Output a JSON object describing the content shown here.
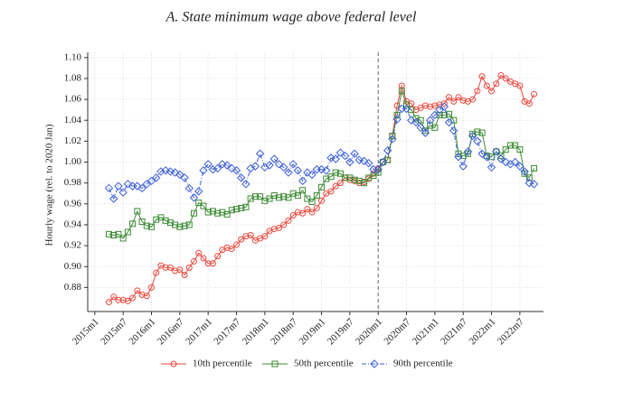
{
  "chart_data": {
    "type": "line",
    "title": "A. State minimum wage above federal level",
    "ylabel": "Hourly wage (rel. to 2020 Jan)",
    "x": [
      3,
      4,
      5,
      6,
      7,
      8,
      9,
      10,
      11,
      12,
      13,
      14,
      15,
      16,
      17,
      18,
      19,
      20,
      21,
      22,
      23,
      24,
      25,
      26,
      27,
      28,
      29,
      30,
      31,
      32,
      33,
      34,
      35,
      36,
      37,
      38,
      39,
      40,
      41,
      42,
      43,
      44,
      45,
      46,
      47,
      48,
      49,
      50,
      51,
      52,
      53,
      54,
      55,
      56,
      57,
      58,
      59,
      60,
      61,
      62,
      63,
      64,
      65,
      66,
      67,
      68,
      69,
      70,
      71,
      72,
      73,
      74,
      75,
      76,
      77,
      78,
      79,
      80,
      81,
      82,
      83,
      84,
      85,
      86,
      87,
      88,
      89,
      90,
      91,
      92,
      93
    ],
    "xlim": [
      -1.5,
      95
    ],
    "xticks": [
      {
        "value": 0,
        "label": "2015m1"
      },
      {
        "value": 6,
        "label": "2015m7"
      },
      {
        "value": 12,
        "label": "2016m1"
      },
      {
        "value": 18,
        "label": "2016m7"
      },
      {
        "value": 24,
        "label": "2017m1"
      },
      {
        "value": 30,
        "label": "2017m7"
      },
      {
        "value": 36,
        "label": "2018m1"
      },
      {
        "value": 42,
        "label": "2018m7"
      },
      {
        "value": 48,
        "label": "2019m1"
      },
      {
        "value": 54,
        "label": "2019m7"
      },
      {
        "value": 60,
        "label": "2020m1"
      },
      {
        "value": 66,
        "label": "2020m7"
      },
      {
        "value": 72,
        "label": "2021m1"
      },
      {
        "value": 78,
        "label": "2021m7"
      },
      {
        "value": 84,
        "label": "2022m1"
      },
      {
        "value": 90,
        "label": "2022m7"
      }
    ],
    "ylim": [
      0.857,
      1.105
    ],
    "yticks": [
      0.88,
      {
        "value": 0.9,
        "label": "0.90"
      },
      0.92,
      0.94,
      0.96,
      0.98,
      {
        "value": 1.0,
        "label": "1.00"
      },
      1.02,
      1.04,
      1.06,
      1.08,
      {
        "value": 1.1,
        "label": "1.10"
      }
    ],
    "grid": true,
    "vline": 60,
    "legend": "bottom",
    "series": [
      {
        "name": "10th percentile",
        "color": "#e8473d",
        "marker": "circle",
        "dash": "solid",
        "values": [
          0.866,
          0.871,
          0.868,
          0.868,
          0.867,
          0.87,
          0.877,
          0.873,
          0.872,
          0.88,
          0.894,
          0.901,
          0.899,
          0.899,
          0.896,
          0.897,
          0.892,
          0.899,
          0.905,
          0.913,
          0.908,
          0.903,
          0.903,
          0.91,
          0.916,
          0.918,
          0.917,
          0.921,
          0.926,
          0.929,
          0.93,
          0.925,
          0.927,
          0.929,
          0.934,
          0.936,
          0.937,
          0.94,
          0.944,
          0.949,
          0.952,
          0.951,
          0.955,
          0.952,
          0.956,
          0.963,
          0.97,
          0.972,
          0.977,
          0.98,
          0.985,
          0.983,
          0.982,
          0.98,
          0.981,
          0.984,
          0.989,
          0.994,
          1.0,
          1.002,
          1.025,
          1.054,
          1.073,
          1.058,
          1.056,
          1.05,
          1.052,
          1.054,
          1.053,
          1.054,
          1.055,
          1.056,
          1.062,
          1.058,
          1.062,
          1.059,
          1.058,
          1.06,
          1.068,
          1.082,
          1.073,
          1.068,
          1.075,
          1.083,
          1.08,
          1.077,
          1.075,
          1.073,
          1.058,
          1.056,
          1.065
        ]
      },
      {
        "name": "50th percentile",
        "color": "#3d8a35",
        "marker": "square",
        "dash": "solid",
        "values": [
          0.931,
          0.93,
          0.931,
          0.927,
          0.933,
          0.941,
          0.953,
          0.943,
          0.939,
          0.938,
          0.945,
          0.947,
          0.944,
          0.942,
          0.94,
          0.938,
          0.939,
          0.94,
          0.951,
          0.961,
          0.958,
          0.952,
          0.953,
          0.951,
          0.952,
          0.95,
          0.954,
          0.955,
          0.956,
          0.957,
          0.965,
          0.967,
          0.967,
          0.963,
          0.965,
          0.968,
          0.966,
          0.967,
          0.966,
          0.97,
          0.968,
          0.973,
          0.965,
          0.962,
          0.968,
          0.976,
          0.984,
          0.986,
          0.99,
          0.989,
          0.985,
          0.985,
          0.983,
          0.982,
          0.98,
          0.985,
          0.987,
          0.99,
          1.0,
          1.002,
          1.025,
          1.045,
          1.068,
          1.055,
          1.05,
          1.042,
          1.04,
          1.03,
          1.035,
          1.033,
          1.045,
          1.045,
          1.046,
          1.04,
          1.008,
          1.006,
          1.008,
          1.027,
          1.029,
          1.028,
          1.006,
          1.005,
          1.01,
          1.006,
          1.012,
          1.016,
          1.016,
          1.012,
          0.989,
          0.985,
          0.994
        ]
      },
      {
        "name": "90th percentile",
        "color": "#3b5ed6",
        "marker": "diamond",
        "dash": "dashdot",
        "values": [
          0.975,
          0.965,
          0.977,
          0.971,
          0.979,
          0.977,
          0.977,
          0.975,
          0.979,
          0.982,
          0.985,
          0.991,
          0.992,
          0.991,
          0.99,
          0.988,
          0.985,
          0.975,
          0.966,
          0.972,
          0.992,
          0.998,
          0.993,
          0.994,
          0.998,
          0.997,
          0.994,
          0.992,
          0.985,
          0.979,
          0.994,
          0.996,
          1.008,
          0.995,
          0.997,
          1.003,
          0.998,
          0.995,
          0.99,
          0.998,
          0.992,
          0.982,
          0.99,
          0.988,
          0.993,
          0.993,
          0.992,
          1.004,
          1.003,
          1.009,
          1.006,
          1.0,
          1.008,
          1.002,
          1.001,
          0.999,
          0.993,
          0.993,
          1.0,
          1.011,
          1.022,
          1.041,
          1.051,
          1.051,
          1.04,
          1.038,
          1.033,
          1.028,
          1.04,
          1.045,
          1.05,
          1.053,
          1.038,
          1.03,
          1.005,
          0.996,
          1.01,
          1.025,
          1.02,
          1.008,
          1.005,
          0.995,
          1.01,
          1.003,
          1.0,
          0.998,
          1.0,
          0.996,
          0.991,
          0.98,
          0.979
        ]
      }
    ]
  }
}
